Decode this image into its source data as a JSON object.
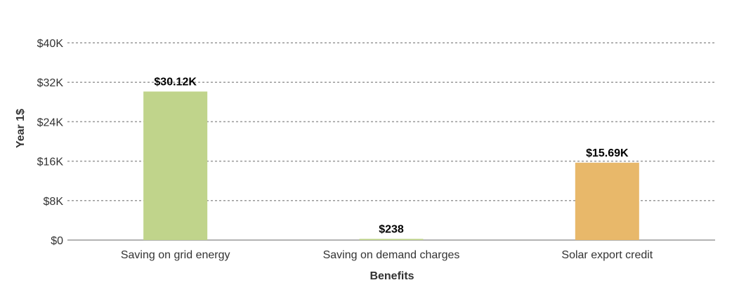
{
  "chart_data": {
    "type": "bar",
    "xlabel": "Benefits",
    "ylabel": "Year 1$",
    "ylim": [
      0,
      40000
    ],
    "yticks": [
      0,
      8000,
      16000,
      24000,
      32000,
      40000
    ],
    "ytick_labels": [
      "$0",
      "$8K",
      "$16K",
      "$24K",
      "$32K",
      "$40K"
    ],
    "grid": true,
    "categories": [
      "Saving on grid energy",
      "Saving on demand charges",
      "Solar export credit"
    ],
    "values": [
      30120,
      238,
      15690
    ],
    "data_labels": [
      "$30.12K",
      "$238",
      "$15.69K"
    ],
    "colors": [
      "#c0d48b",
      "#c0d48b",
      "#e8b86a"
    ]
  }
}
